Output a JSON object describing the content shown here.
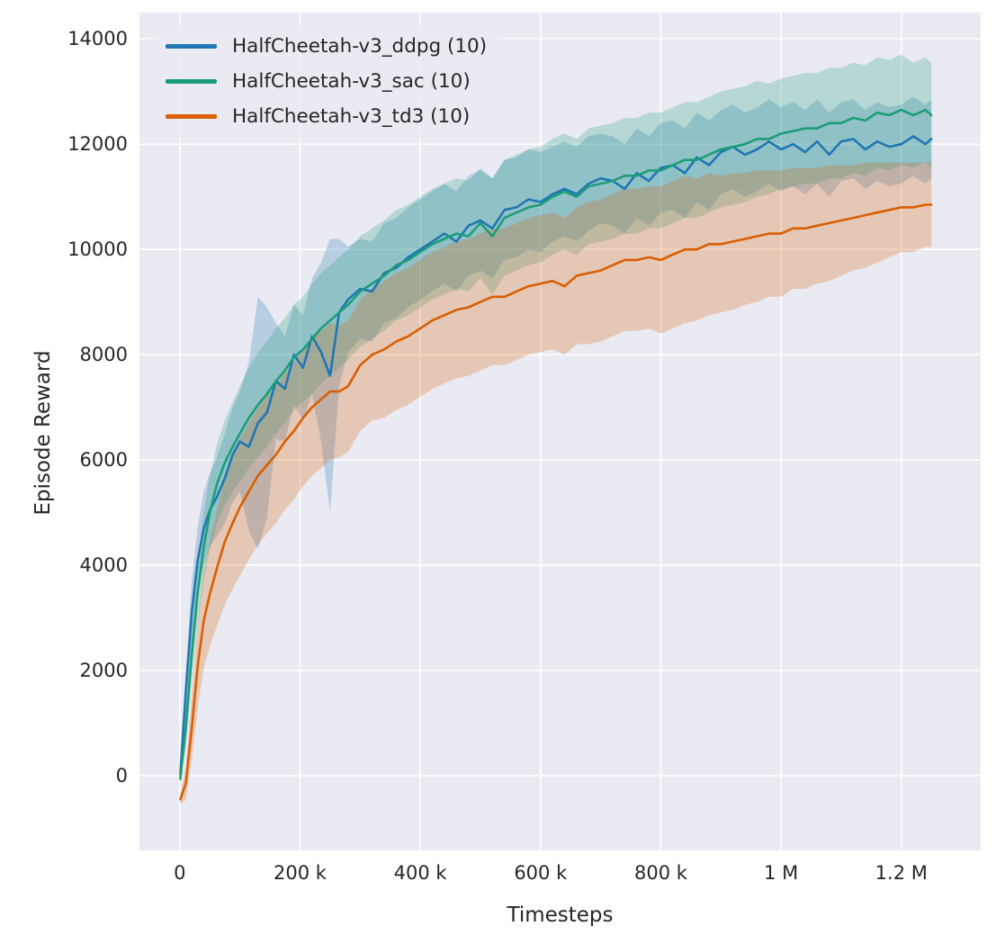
{
  "figure": {
    "xlabel": "Timesteps",
    "ylabel": "Episode Reward"
  },
  "legend": {
    "items": [
      {
        "label": "HalfCheetah-v3_ddpg (10)",
        "color": "#1f77b4"
      },
      {
        "label": "HalfCheetah-v3_sac (10)",
        "color": "#1b9e77"
      },
      {
        "label": "HalfCheetah-v3_td3 (10)",
        "color": "#d95f02"
      }
    ]
  },
  "chart_data": {
    "type": "line",
    "title": "",
    "xlabel": "Timesteps",
    "ylabel": "Episode Reward",
    "grid": true,
    "legend_position": "upper-left",
    "background": "#eaeaf2",
    "grid_color": "#ffffff",
    "text_color": "#262626",
    "xlim": [
      -67000,
      1332000
    ],
    "ylim": [
      -1420,
      14500
    ],
    "x_ticks": [
      {
        "value": 0,
        "label": "0"
      },
      {
        "value": 200000,
        "label": "200 k"
      },
      {
        "value": 400000,
        "label": "400 k"
      },
      {
        "value": 600000,
        "label": "600 k"
      },
      {
        "value": 800000,
        "label": "800 k"
      },
      {
        "value": 1000000,
        "label": "1 M"
      },
      {
        "value": 1200000,
        "label": "1.2 M"
      }
    ],
    "y_ticks": [
      {
        "value": 0,
        "label": "0"
      },
      {
        "value": 2000,
        "label": "2000"
      },
      {
        "value": 4000,
        "label": "4000"
      },
      {
        "value": 6000,
        "label": "6000"
      },
      {
        "value": 8000,
        "label": "8000"
      },
      {
        "value": 10000,
        "label": "10000"
      },
      {
        "value": 12000,
        "label": "12000"
      },
      {
        "value": 14000,
        "label": "14000"
      }
    ],
    "x_unit": 1000,
    "x": [
      1,
      10,
      20,
      30,
      40,
      50,
      62,
      75,
      88,
      100,
      115,
      130,
      145,
      160,
      175,
      190,
      205,
      220,
      235,
      250,
      265,
      280,
      300,
      320,
      340,
      360,
      380,
      400,
      420,
      440,
      460,
      480,
      500,
      520,
      540,
      560,
      580,
      600,
      620,
      640,
      660,
      680,
      700,
      720,
      740,
      760,
      780,
      800,
      820,
      840,
      860,
      880,
      900,
      920,
      940,
      960,
      980,
      1000,
      1020,
      1040,
      1060,
      1080,
      1100,
      1120,
      1140,
      1160,
      1180,
      1200,
      1220,
      1240,
      1250
    ],
    "series": [
      {
        "name": "HalfCheetah-v3_ddpg (10)",
        "color": "#1f77b4",
        "band_alpha": 0.25,
        "mean": [
          30,
          1600,
          3100,
          4100,
          4700,
          5050,
          5300,
          5650,
          6100,
          6350,
          6250,
          6700,
          6900,
          7500,
          7350,
          8000,
          7750,
          8350,
          8050,
          7600,
          8800,
          9050,
          9250,
          9200,
          9550,
          9650,
          9850,
          10000,
          10150,
          10300,
          10150,
          10450,
          10550,
          10400,
          10750,
          10800,
          10950,
          10900,
          11050,
          11150,
          11050,
          11250,
          11350,
          11300,
          11150,
          11450,
          11300,
          11550,
          11600,
          11450,
          11750,
          11600,
          11850,
          11950,
          11800,
          11900,
          12050,
          11900,
          12000,
          11850,
          12050,
          11800,
          12050,
          12100,
          11900,
          12050,
          11950,
          12000,
          12150,
          12000,
          12100
        ],
        "band": [
          150,
          400,
          600,
          650,
          700,
          700,
          750,
          850,
          900,
          950,
          1600,
          2400,
          2000,
          1100,
          1000,
          950,
          1000,
          1100,
          1700,
          2600,
          1400,
          1000,
          950,
          950,
          950,
          950,
          950,
          950,
          950,
          950,
          950,
          950,
          950,
          950,
          950,
          950,
          950,
          950,
          900,
          900,
          900,
          900,
          850,
          850,
          850,
          850,
          850,
          850,
          850,
          850,
          850,
          850,
          800,
          800,
          800,
          800,
          800,
          800,
          800,
          800,
          800,
          800,
          750,
          750,
          750,
          750,
          750,
          750,
          750,
          750,
          750
        ]
      },
      {
        "name": "HalfCheetah-v3_sac (10)",
        "color": "#1b9e77",
        "band_alpha": 0.25,
        "mean": [
          -60,
          900,
          2300,
          3500,
          4350,
          5000,
          5550,
          5950,
          6250,
          6500,
          6800,
          7050,
          7250,
          7500,
          7700,
          7950,
          8100,
          8300,
          8500,
          8650,
          8800,
          8950,
          9200,
          9350,
          9500,
          9700,
          9800,
          9950,
          10100,
          10200,
          10300,
          10250,
          10500,
          10250,
          10600,
          10700,
          10800,
          10850,
          11000,
          11100,
          11000,
          11200,
          11250,
          11300,
          11400,
          11400,
          11500,
          11500,
          11600,
          11700,
          11700,
          11800,
          11900,
          11950,
          12000,
          12100,
          12100,
          12200,
          12250,
          12300,
          12300,
          12400,
          12400,
          12500,
          12450,
          12600,
          12550,
          12650,
          12550,
          12650,
          12550
        ],
        "band": [
          60,
          350,
          500,
          600,
          650,
          700,
          750,
          800,
          850,
          900,
          950,
          1000,
          1000,
          1000,
          1000,
          1000,
          1000,
          1050,
          1050,
          1050,
          1050,
          1050,
          1050,
          1050,
          1050,
          1050,
          1050,
          1050,
          1050,
          1050,
          1050,
          1050,
          1050,
          1100,
          1100,
          1100,
          1100,
          1100,
          1100,
          1100,
          1100,
          1100,
          1100,
          1100,
          1100,
          1100,
          1100,
          1100,
          1100,
          1100,
          1100,
          1100,
          1100,
          1100,
          1100,
          1100,
          1050,
          1050,
          1050,
          1050,
          1050,
          1050,
          1050,
          1050,
          1050,
          1050,
          1050,
          1050,
          1000,
          1000,
          1000
        ]
      },
      {
        "name": "HalfCheetah-v3_td3 (10)",
        "color": "#d95f02",
        "band_alpha": 0.25,
        "mean": [
          -450,
          -150,
          900,
          2100,
          2950,
          3450,
          3950,
          4450,
          4800,
          5100,
          5400,
          5700,
          5900,
          6100,
          6350,
          6550,
          6800,
          7000,
          7150,
          7300,
          7300,
          7400,
          7800,
          8000,
          8100,
          8250,
          8350,
          8500,
          8650,
          8750,
          8850,
          8900,
          9000,
          9100,
          9100,
          9200,
          9300,
          9350,
          9400,
          9300,
          9500,
          9550,
          9600,
          9700,
          9800,
          9800,
          9850,
          9800,
          9900,
          10000,
          10000,
          10100,
          10100,
          10150,
          10200,
          10250,
          10300,
          10300,
          10400,
          10400,
          10450,
          10500,
          10550,
          10600,
          10650,
          10700,
          10750,
          10800,
          10800,
          10850,
          10850
        ],
        "band": [
          100,
          300,
          600,
          800,
          900,
          1000,
          1100,
          1200,
          1250,
          1300,
          1300,
          1300,
          1300,
          1300,
          1300,
          1300,
          1300,
          1300,
          1300,
          1300,
          1250,
          1250,
          1250,
          1250,
          1300,
          1300,
          1300,
          1300,
          1300,
          1300,
          1300,
          1300,
          1300,
          1300,
          1300,
          1300,
          1300,
          1300,
          1300,
          1300,
          1300,
          1350,
          1350,
          1350,
          1350,
          1350,
          1350,
          1400,
          1400,
          1400,
          1350,
          1350,
          1300,
          1300,
          1250,
          1250,
          1200,
          1200,
          1150,
          1150,
          1100,
          1100,
          1050,
          1000,
          1000,
          950,
          900,
          850,
          850,
          800,
          800
        ]
      }
    ]
  }
}
